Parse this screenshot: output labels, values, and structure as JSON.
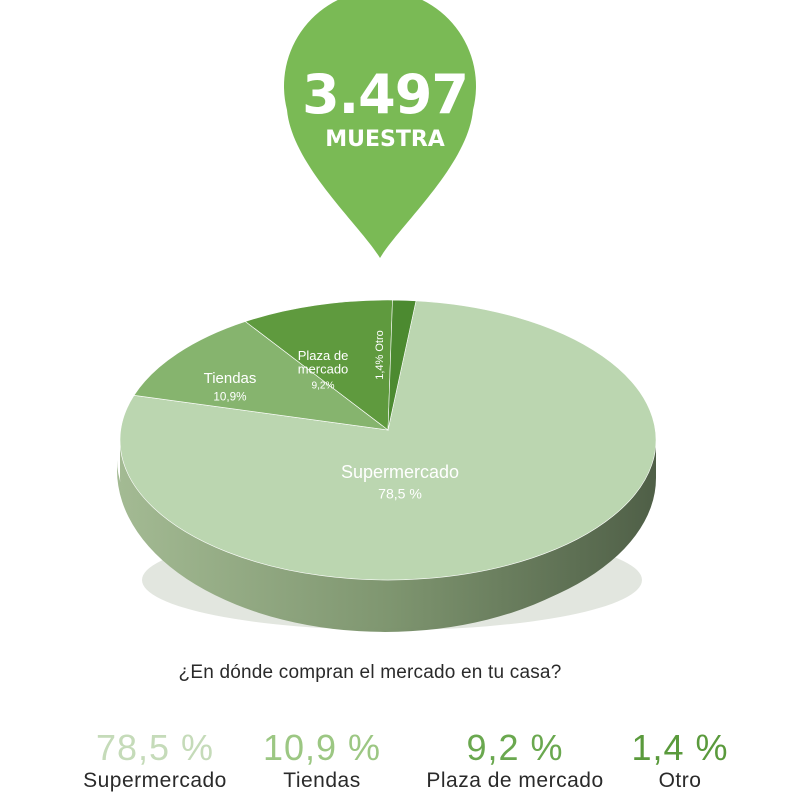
{
  "badge": {
    "count": "3.497",
    "label": "MUESTRA",
    "color": "#7aba55"
  },
  "chart_data": {
    "type": "pie",
    "title": "",
    "slices": [
      {
        "label": "Supermercado",
        "value": 78.5,
        "chart_label": "78,5 %",
        "color": "#bbd6b0"
      },
      {
        "label": "Tiendas",
        "value": 10.9,
        "chart_label": "10,9%",
        "color": "#86b46e"
      },
      {
        "label": "Plaza de mercado",
        "value": 9.2,
        "chart_label": "9,2%",
        "color": "#5f9a3e"
      },
      {
        "label": "Otro",
        "value": 1.4,
        "chart_label": "1,4% Otro",
        "color": "#4c8a30"
      }
    ]
  },
  "question": "¿En dónde compran el mercado en tu casa?",
  "legend": [
    {
      "value": "78,5 %",
      "label": "Supermercado",
      "color": "#c5dbb9"
    },
    {
      "value": "10,9 %",
      "label": "Tiendas",
      "color": "#9cc783"
    },
    {
      "value": "9,2 %",
      "label": "Plaza de mercado",
      "color": "#6aa84f"
    },
    {
      "value": "1,4 %",
      "label": "Otro",
      "color": "#5a9a3c"
    }
  ]
}
